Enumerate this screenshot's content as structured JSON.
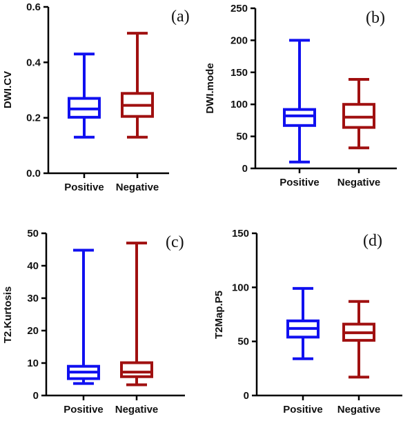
{
  "chart_data": [
    {
      "type": "boxplot",
      "panel_label": "(a)",
      "ylabel": "DWI.CV",
      "ylim": [
        0,
        0.6
      ],
      "yticks": [
        0.0,
        0.2,
        0.4,
        0.6
      ],
      "ytick_labels": [
        "0.0",
        "0.2",
        "0.4",
        "0.6"
      ],
      "categories": [
        "Positive",
        "Negative"
      ],
      "boxes": [
        {
          "category": "Positive",
          "min": 0.13,
          "q1": 0.202,
          "median": 0.232,
          "q3": 0.27,
          "max": 0.43,
          "color": "#1010f0"
        },
        {
          "category": "Negative",
          "min": 0.13,
          "q1": 0.205,
          "median": 0.245,
          "q3": 0.288,
          "max": 0.505,
          "color": "#a01010"
        }
      ]
    },
    {
      "type": "boxplot",
      "panel_label": "(b)",
      "ylabel": "DWI.mode",
      "ylim": [
        0,
        250
      ],
      "yticks": [
        0,
        50,
        100,
        150,
        200,
        250
      ],
      "ytick_labels": [
        "0",
        "50",
        "100",
        "150",
        "200",
        "250"
      ],
      "categories": [
        "Positive",
        "Negative"
      ],
      "boxes": [
        {
          "category": "Positive",
          "min": 10,
          "q1": 67,
          "median": 82,
          "q3": 92,
          "max": 200,
          "color": "#1010f0"
        },
        {
          "category": "Negative",
          "min": 32,
          "q1": 64,
          "median": 80,
          "q3": 100,
          "max": 139,
          "color": "#a01010"
        }
      ]
    },
    {
      "type": "boxplot",
      "panel_label": "(c)",
      "ylabel": "T2.Kurtosis",
      "ylim": [
        0,
        50
      ],
      "yticks": [
        0,
        10,
        20,
        30,
        40,
        50
      ],
      "ytick_labels": [
        "0",
        "10",
        "20",
        "30",
        "40",
        "50"
      ],
      "categories": [
        "Positive",
        "Negative"
      ],
      "boxes": [
        {
          "category": "Positive",
          "min": 3.7,
          "q1": 5.2,
          "median": 7.2,
          "q3": 9.0,
          "max": 44.8,
          "color": "#1010f0"
        },
        {
          "category": "Negative",
          "min": 3.3,
          "q1": 5.8,
          "median": 7.2,
          "q3": 10.1,
          "max": 47.0,
          "color": "#a01010"
        }
      ]
    },
    {
      "type": "boxplot",
      "panel_label": "(d)",
      "ylabel": "T2Map.P5",
      "ylim": [
        0,
        150
      ],
      "yticks": [
        0,
        50,
        100,
        150
      ],
      "ytick_labels": [
        "0",
        "50",
        "100",
        "150"
      ],
      "categories": [
        "Positive",
        "Negative"
      ],
      "boxes": [
        {
          "category": "Positive",
          "min": 34,
          "q1": 54,
          "median": 62,
          "q3": 69,
          "max": 99,
          "color": "#1010f0"
        },
        {
          "category": "Negative",
          "min": 17,
          "q1": 51,
          "median": 58,
          "q3": 66,
          "max": 87,
          "color": "#a01010"
        }
      ]
    }
  ]
}
